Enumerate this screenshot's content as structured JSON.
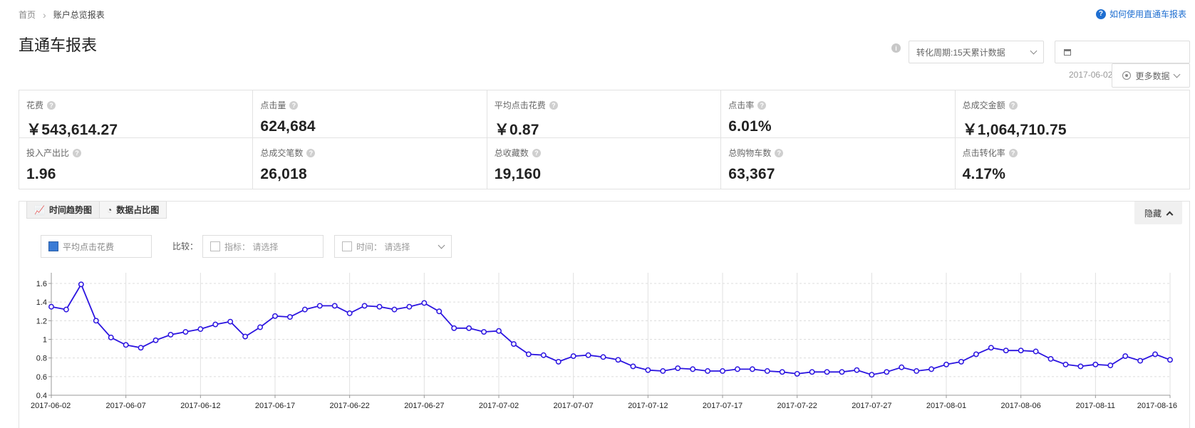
{
  "breadcrumb": {
    "home": "首页",
    "current": "账户总览报表"
  },
  "help_link": "如何使用直通车报表",
  "page_title": "直通车报表",
  "period_select": "转化周期:15天累计数据",
  "date_hint": "2017-06-02",
  "more_data": "更多数据",
  "metrics": [
    {
      "label": "花费",
      "value": "￥543,614.27"
    },
    {
      "label": "点击量",
      "value": "624,684"
    },
    {
      "label": "平均点击花费",
      "value": "￥0.87"
    },
    {
      "label": "点击率",
      "value": "6.01%"
    },
    {
      "label": "总成交金额",
      "value": "￥1,064,710.75"
    },
    {
      "label": "投入产出比",
      "value": "1.96"
    },
    {
      "label": "总成交笔数",
      "value": "26,018"
    },
    {
      "label": "总收藏数",
      "value": "19,160"
    },
    {
      "label": "总购物车数",
      "value": "63,367"
    },
    {
      "label": "点击转化率",
      "value": "4.17%"
    }
  ],
  "tabs": [
    {
      "label": "时间趋势图",
      "icon": "line-chart-icon"
    },
    {
      "label": "数据占比图",
      "icon": "pie-chart-icon"
    }
  ],
  "hide_button": "隐藏",
  "legend_item": "平均点击花费",
  "compare_label": "比较：",
  "compare_metric": "指标： 请选择",
  "compare_time": "时间： 请选择",
  "colors": {
    "series": "#2b14e0",
    "accent": "#1f6fd1"
  },
  "chart_data": {
    "type": "line",
    "series": [
      {
        "name": "平均点击花费"
      }
    ],
    "x_start": "2017-06-02",
    "x_end": "2017-08-17",
    "x_tick_labels": [
      "2017-06-02",
      "2017-06-07",
      "2017-06-12",
      "2017-06-17",
      "2017-06-22",
      "2017-06-27",
      "2017-07-02",
      "2017-07-07",
      "2017-07-12",
      "2017-07-17",
      "2017-07-22",
      "2017-07-27",
      "2017-08-01",
      "2017-08-06",
      "2017-08-11",
      "2017-08-16"
    ],
    "y_ticks": [
      "0.4",
      "0.6",
      "0.8",
      "1",
      "1.2",
      "1.4",
      "1.6"
    ],
    "ylim": [
      0.4,
      1.6
    ],
    "grid": true,
    "values": [
      1.35,
      1.32,
      1.59,
      1.2,
      1.02,
      0.94,
      0.91,
      0.99,
      1.05,
      1.08,
      1.11,
      1.16,
      1.19,
      1.03,
      1.13,
      1.25,
      1.24,
      1.32,
      1.36,
      1.36,
      1.28,
      1.36,
      1.35,
      1.32,
      1.35,
      1.39,
      1.3,
      1.12,
      1.12,
      1.08,
      1.09,
      0.95,
      0.84,
      0.83,
      0.76,
      0.82,
      0.83,
      0.81,
      0.78,
      0.71,
      0.67,
      0.66,
      0.69,
      0.68,
      0.66,
      0.66,
      0.68,
      0.68,
      0.66,
      0.65,
      0.63,
      0.65,
      0.65,
      0.65,
      0.67,
      0.62,
      0.65,
      0.7,
      0.66,
      0.68,
      0.73,
      0.76,
      0.84,
      0.91,
      0.88,
      0.88,
      0.87,
      0.79,
      0.73,
      0.71,
      0.73,
      0.72,
      0.82,
      0.77,
      0.84,
      0.78
    ]
  }
}
